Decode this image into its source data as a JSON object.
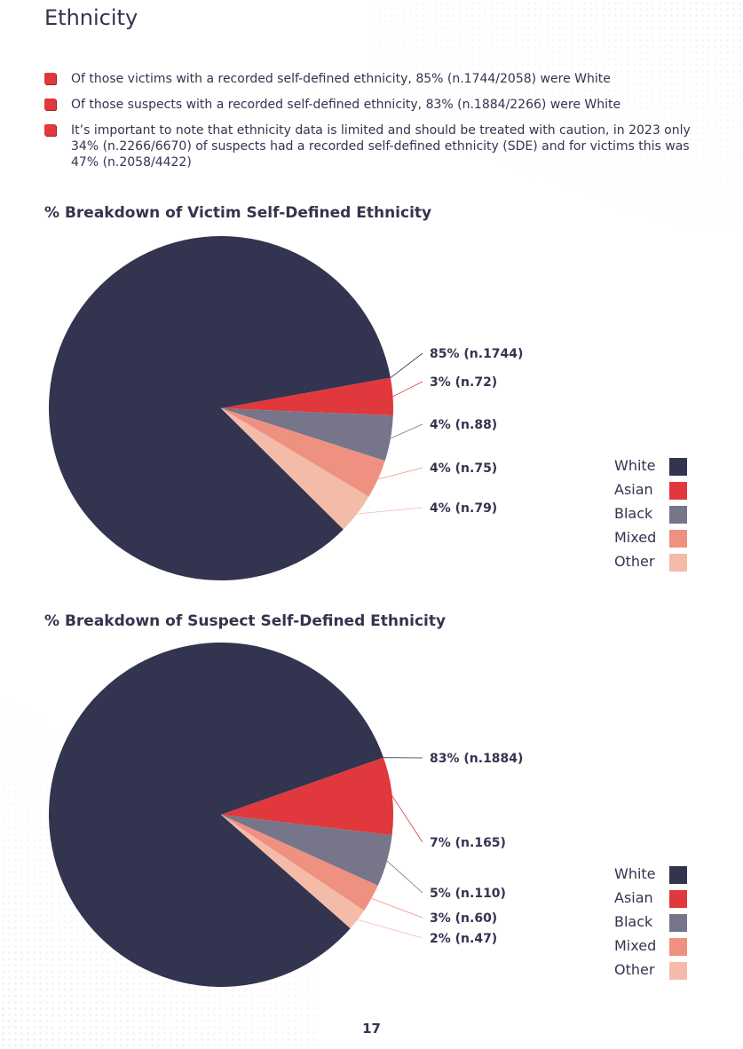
{
  "page": {
    "title": "Ethnicity",
    "page_number": "17"
  },
  "bullets": [
    "Of those victims with a recorded self-defined ethnicity, 85% (n.1744/2058) were White",
    "Of those suspects with a recorded self-defined ethnicity, 83% (n.1884/2266) were White",
    "It’s important to note that ethnicity data is limited and should be treated with caution, in 2023 only 34% (n.2266/6670) of suspects had a recorded self-defined ethnicity (SDE) and for victims this was 47% (n.2058/4422)"
  ],
  "colors": {
    "White": "#33344f",
    "Asian": "#e0383c",
    "Black": "#76758a",
    "Mixed": "#ee9181",
    "Other": "#f4bba9",
    "bullet": "#e0383c"
  },
  "chart_data": [
    {
      "type": "pie",
      "title": "% Breakdown of Victim Self-Defined Ethnicity",
      "legend": [
        "White",
        "Asian",
        "Black",
        "Mixed",
        "Other"
      ],
      "slices": [
        {
          "name": "White",
          "value": 1744,
          "label": "85% (n.1744)"
        },
        {
          "name": "Asian",
          "value": 72,
          "label": "3% (n.72)"
        },
        {
          "name": "Black",
          "value": 88,
          "label": "4% (n.88)"
        },
        {
          "name": "Mixed",
          "value": 75,
          "label": "4% (n.75)"
        },
        {
          "name": "Other",
          "value": 79,
          "label": "4% (n.79)"
        }
      ]
    },
    {
      "type": "pie",
      "title": "% Breakdown of Suspect Self-Defined Ethnicity",
      "legend": [
        "White",
        "Asian",
        "Black",
        "Mixed",
        "Other"
      ],
      "slices": [
        {
          "name": "White",
          "value": 1884,
          "label": "83% (n.1884)"
        },
        {
          "name": "Asian",
          "value": 165,
          "label": "7% (n.165)"
        },
        {
          "name": "Black",
          "value": 110,
          "label": "5% (n.110)"
        },
        {
          "name": "Mixed",
          "value": 60,
          "label": "3% (n.60)"
        },
        {
          "name": "Other",
          "value": 47,
          "label": "2% (n.47)"
        }
      ]
    }
  ]
}
